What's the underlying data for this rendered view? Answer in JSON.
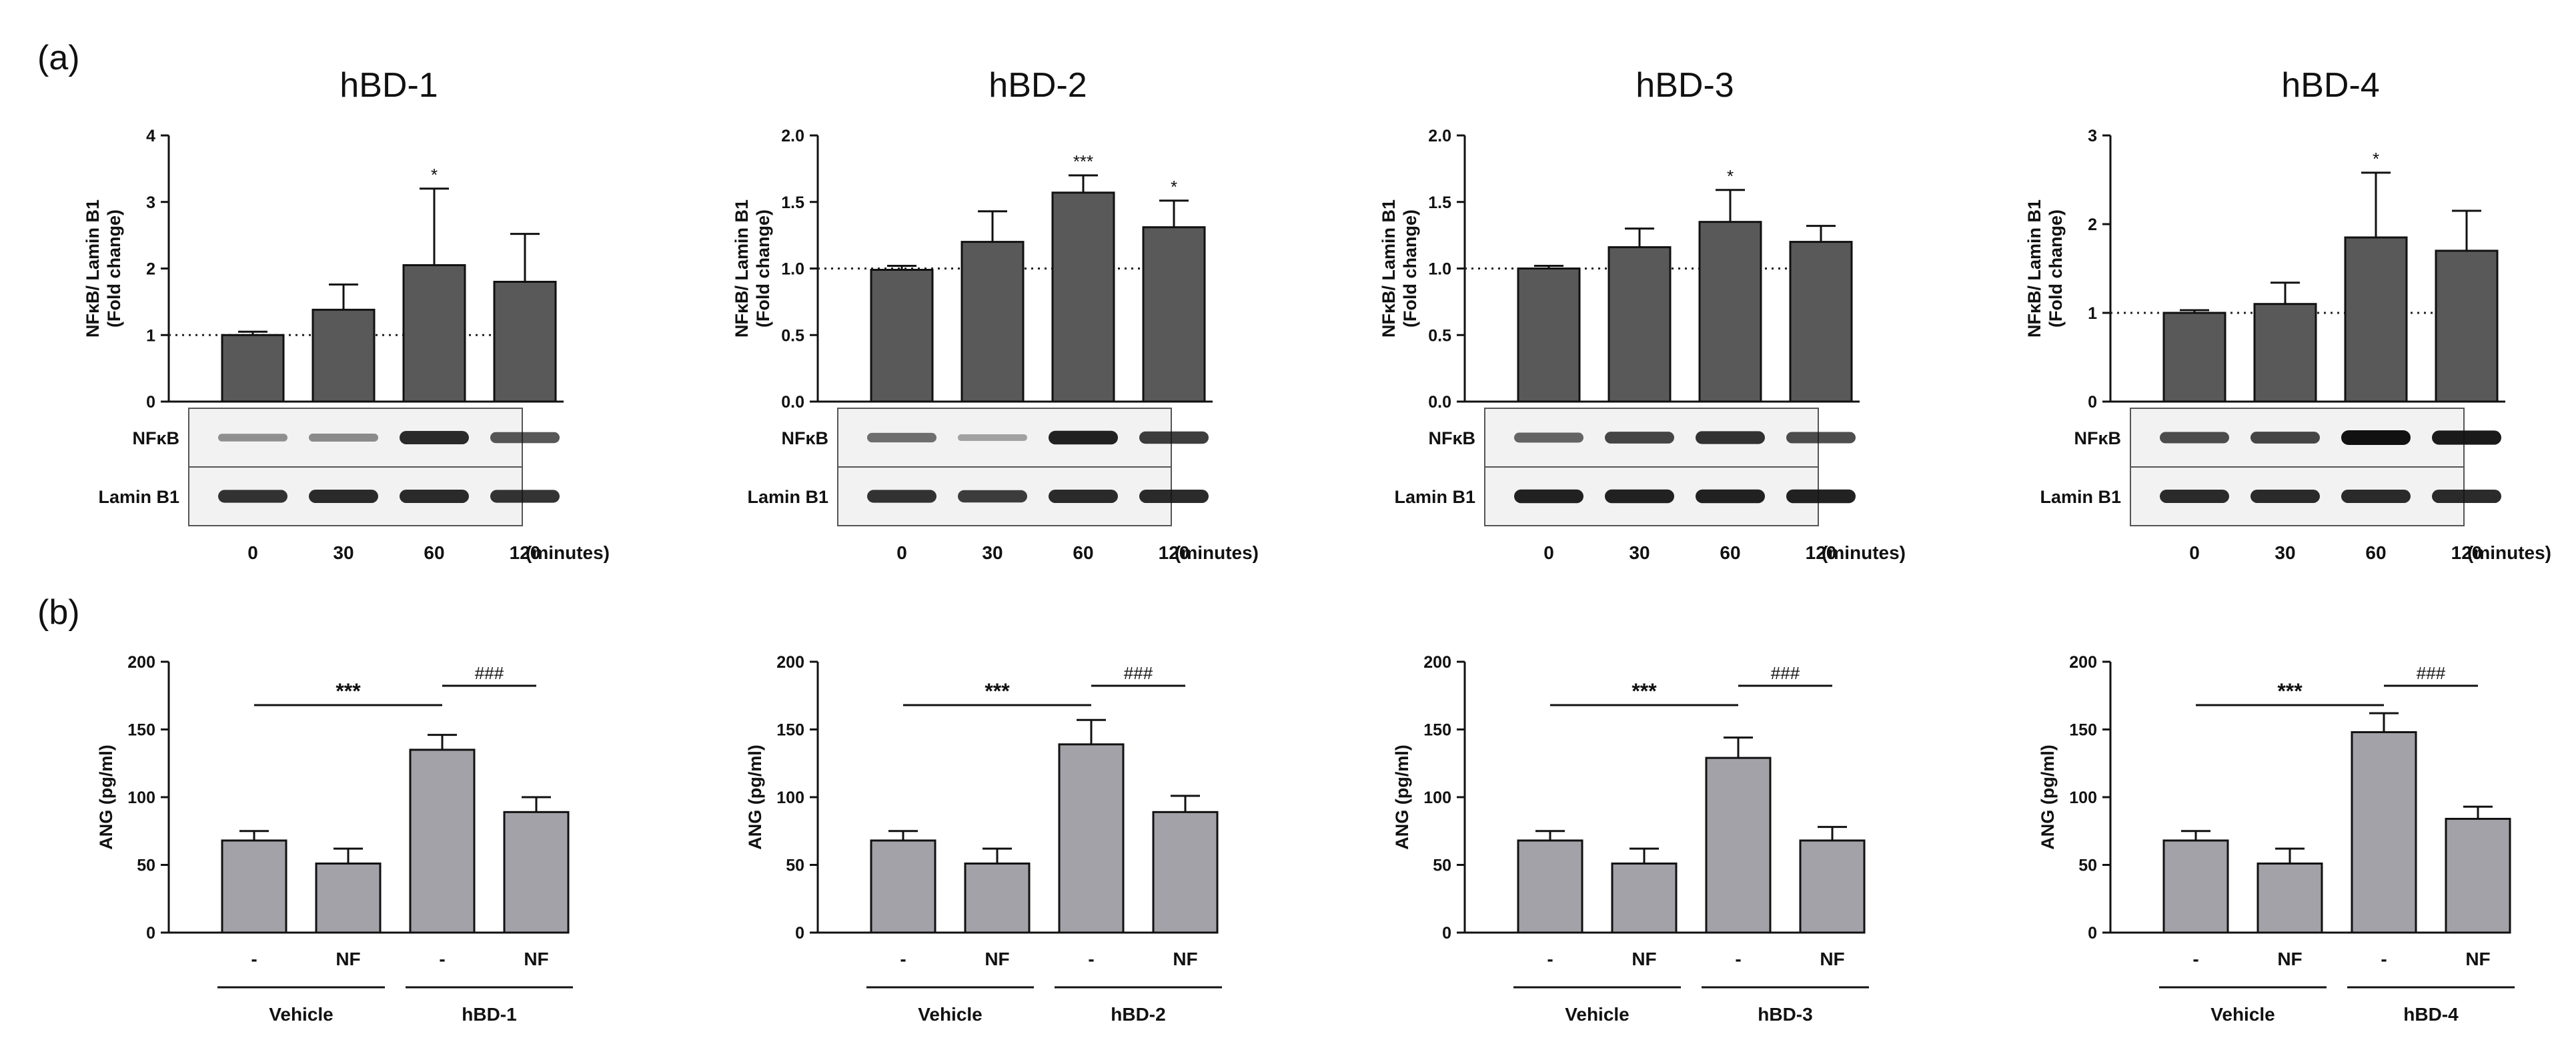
{
  "panel_labels": [
    "(a)",
    "(b)"
  ],
  "chart_data": [
    {
      "type": "bar",
      "panel": "a",
      "title": "hBD-1",
      "ylabel": "NFκB/ Lamin B1\n(Fold change)",
      "categories": [
        "0",
        "30",
        "60",
        "120"
      ],
      "xlabel": "(minutes)",
      "ylim": [
        0,
        4
      ],
      "yticks": [
        0,
        1,
        2,
        3,
        4
      ],
      "tick_labels": [
        "0",
        "1",
        "2",
        "3",
        "4"
      ],
      "reference_line": 1,
      "values": [
        1.0,
        1.38,
        2.05,
        1.8
      ],
      "errors": [
        0.05,
        0.38,
        1.15,
        0.72
      ],
      "significance": [
        "",
        "",
        "*",
        ""
      ],
      "blot_rows": [
        "NFκB",
        "Lamin B1"
      ],
      "blot_intensity": [
        [
          0.25,
          0.28,
          0.85,
          0.6
        ],
        [
          0.8,
          0.85,
          0.85,
          0.8
        ]
      ]
    },
    {
      "type": "bar",
      "panel": "a",
      "title": "hBD-2",
      "ylabel": "NFκB/ Lamin B1\n(Fold change)",
      "categories": [
        "0",
        "30",
        "60",
        "120"
      ],
      "xlabel": "(minutes)",
      "ylim": [
        0,
        2.0
      ],
      "yticks": [
        0,
        0.5,
        1.0,
        1.5,
        2.0
      ],
      "tick_labels": [
        "0.0",
        "0.5",
        "1.0",
        "1.5",
        "2.0"
      ],
      "reference_line": 1.0,
      "values": [
        0.99,
        1.2,
        1.57,
        1.31
      ],
      "errors": [
        0.03,
        0.23,
        0.13,
        0.2
      ],
      "significance": [
        "",
        "",
        "***",
        "*"
      ],
      "blot_rows": [
        "NFκB",
        "Lamin B1"
      ],
      "blot_intensity": [
        [
          0.45,
          0.15,
          0.9,
          0.75
        ],
        [
          0.8,
          0.75,
          0.85,
          0.85
        ]
      ]
    },
    {
      "type": "bar",
      "panel": "a",
      "title": "hBD-3",
      "ylabel": "NFκB/ Lamin B1\n(Fold change)",
      "categories": [
        "0",
        "30",
        "60",
        "120"
      ],
      "xlabel": "(minutes)",
      "ylim": [
        0,
        2.0
      ],
      "yticks": [
        0,
        0.5,
        1.0,
        1.5,
        2.0
      ],
      "tick_labels": [
        "0.0",
        "0.5",
        "1.0",
        "1.5",
        "2.0"
      ],
      "reference_line": 1.0,
      "values": [
        1.0,
        1.16,
        1.35,
        1.2
      ],
      "errors": [
        0.02,
        0.14,
        0.24,
        0.12
      ],
      "significance": [
        "",
        "",
        "*",
        ""
      ],
      "blot_rows": [
        "NFκB",
        "Lamin B1"
      ],
      "blot_intensity": [
        [
          0.5,
          0.7,
          0.8,
          0.65
        ],
        [
          0.9,
          0.9,
          0.9,
          0.9
        ]
      ]
    },
    {
      "type": "bar",
      "panel": "a",
      "title": "hBD-4",
      "ylabel": "NFκB/ Lamin B1\n(Fold change)",
      "categories": [
        "0",
        "30",
        "60",
        "120"
      ],
      "xlabel": "(minutes)",
      "ylim": [
        0,
        3
      ],
      "yticks": [
        0,
        1,
        2,
        3
      ],
      "tick_labels": [
        "0",
        "1",
        "2",
        "3"
      ],
      "reference_line": 1,
      "values": [
        1.0,
        1.1,
        1.85,
        1.7
      ],
      "errors": [
        0.03,
        0.24,
        0.73,
        0.45
      ],
      "significance": [
        "",
        "",
        "*",
        ""
      ],
      "blot_rows": [
        "NFκB",
        "Lamin B1"
      ],
      "blot_intensity": [
        [
          0.65,
          0.7,
          1.0,
          0.95
        ],
        [
          0.85,
          0.85,
          0.85,
          0.85
        ]
      ]
    },
    {
      "type": "bar",
      "panel": "b",
      "title": "",
      "ylabel": "ANG (pg/ml)",
      "categories": [
        "-",
        "NF",
        "-",
        "NF"
      ],
      "groups": [
        "Vehicle",
        "hBD-1"
      ],
      "ylim": [
        0,
        200
      ],
      "yticks": [
        0,
        50,
        100,
        150,
        200
      ],
      "tick_labels": [
        "0",
        "50",
        "100",
        "150",
        "200"
      ],
      "values": [
        68,
        51,
        135,
        89
      ],
      "errors": [
        7,
        11,
        11,
        11
      ],
      "brackets": [
        {
          "from": 0,
          "to": 2,
          "label": "***"
        },
        {
          "from": 2,
          "to": 3,
          "label": "###"
        }
      ]
    },
    {
      "type": "bar",
      "panel": "b",
      "title": "",
      "ylabel": "ANG (pg/ml)",
      "categories": [
        "-",
        "NF",
        "-",
        "NF"
      ],
      "groups": [
        "Vehicle",
        "hBD-2"
      ],
      "ylim": [
        0,
        200
      ],
      "yticks": [
        0,
        50,
        100,
        150,
        200
      ],
      "tick_labels": [
        "0",
        "50",
        "100",
        "150",
        "200"
      ],
      "values": [
        68,
        51,
        139,
        89
      ],
      "errors": [
        7,
        11,
        18,
        12
      ],
      "brackets": [
        {
          "from": 0,
          "to": 2,
          "label": "***"
        },
        {
          "from": 2,
          "to": 3,
          "label": "###"
        }
      ]
    },
    {
      "type": "bar",
      "panel": "b",
      "title": "",
      "ylabel": "ANG (pg/ml)",
      "categories": [
        "-",
        "NF",
        "-",
        "NF"
      ],
      "groups": [
        "Vehicle",
        "hBD-3"
      ],
      "ylim": [
        0,
        200
      ],
      "yticks": [
        0,
        50,
        100,
        150,
        200
      ],
      "tick_labels": [
        "0",
        "50",
        "100",
        "150",
        "200"
      ],
      "values": [
        68,
        51,
        129,
        68
      ],
      "errors": [
        7,
        11,
        15,
        10
      ],
      "brackets": [
        {
          "from": 0,
          "to": 2,
          "label": "***"
        },
        {
          "from": 2,
          "to": 3,
          "label": "###"
        }
      ]
    },
    {
      "type": "bar",
      "panel": "b",
      "title": "",
      "ylabel": "ANG (pg/ml)",
      "categories": [
        "-",
        "NF",
        "-",
        "NF"
      ],
      "groups": [
        "Vehicle",
        "hBD-4"
      ],
      "ylim": [
        0,
        200
      ],
      "yticks": [
        0,
        50,
        100,
        150,
        200
      ],
      "tick_labels": [
        "0",
        "50",
        "100",
        "150",
        "200"
      ],
      "values": [
        68,
        51,
        148,
        84
      ],
      "errors": [
        7,
        11,
        14,
        9
      ],
      "brackets": [
        {
          "from": 0,
          "to": 2,
          "label": "***"
        },
        {
          "from": 2,
          "to": 3,
          "label": "###"
        }
      ]
    }
  ]
}
